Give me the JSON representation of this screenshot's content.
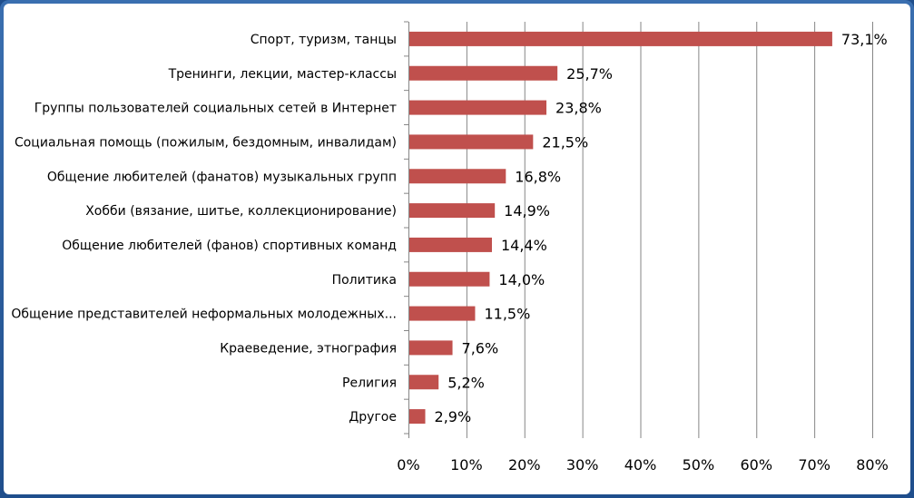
{
  "chart_data": {
    "type": "bar",
    "orientation": "horizontal",
    "categories": [
      "Спорт, туризм, танцы",
      "Тренинги, лекции, мастер-классы",
      "Группы пользователей социальных сетей в Интернет",
      "Социальная помощь (пожилым, бездомным, инвалидам)",
      "Общение любителей (фанатов) музыкальных групп",
      "Хобби (вязание, шитье, коллекционирование)",
      "Общение любителей (фанов) спортивных команд",
      "Политика",
      "Общение представителей неформальных молодежных...",
      "Краеведение, этнография",
      "Религия",
      "Другое"
    ],
    "values": [
      73.1,
      25.7,
      23.8,
      21.5,
      16.8,
      14.9,
      14.4,
      14.0,
      11.5,
      7.6,
      5.2,
      2.9
    ],
    "value_labels": [
      "73,1%",
      "25,7%",
      "23,8%",
      "21,5%",
      "16,8%",
      "14,9%",
      "14,4%",
      "14,0%",
      "11,5%",
      "7,6%",
      "5,2%",
      "2,9%"
    ],
    "xlim": [
      0,
      80
    ],
    "xticks": [
      0,
      10,
      20,
      30,
      40,
      50,
      60,
      70,
      80
    ],
    "xtick_labels": [
      "0%",
      "10%",
      "20%",
      "30%",
      "40%",
      "50%",
      "60%",
      "70%",
      "80%"
    ],
    "grid": "vertical",
    "legend": "none",
    "bar_color": "#c0504d",
    "title": "",
    "xlabel": "",
    "ylabel": ""
  },
  "colors": {
    "frame": "#1f4e8c",
    "background": "#ffffff",
    "grid": "#868686"
  }
}
